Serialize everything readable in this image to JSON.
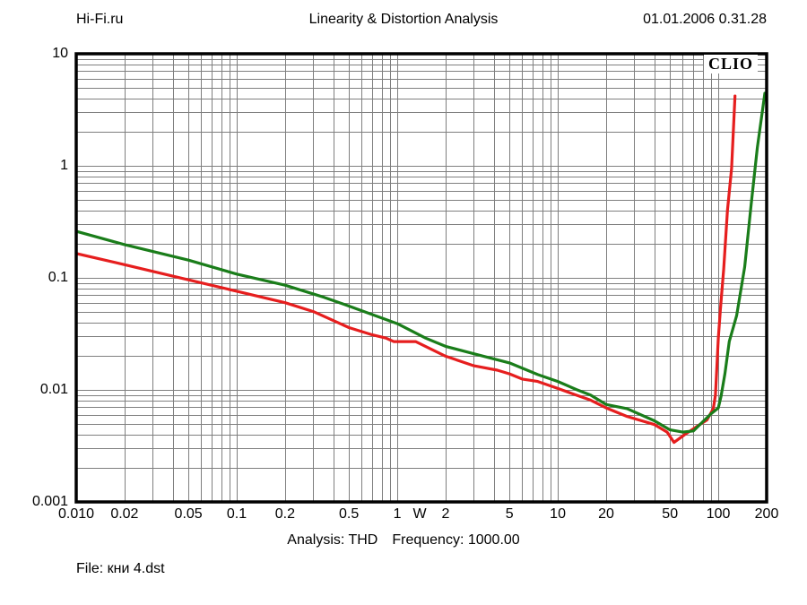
{
  "header": {
    "site": "Hi-Fi.ru",
    "datetime": "01.01.2006 0.31.28"
  },
  "watermark": "CLIO",
  "footer": {
    "analysis": "Analysis: THD",
    "frequency": "Frequency: 1000.00",
    "file": "File: кни 4.dst"
  },
  "colors": {
    "background": "#ffffff",
    "frame": "#000000",
    "grid": "#7f7f7f",
    "red_curve": "#e61e1e",
    "green_curve": "#1a7d1a",
    "text": "#000000"
  },
  "chart_data": {
    "type": "line",
    "title": "Linearity & Distortion Analysis",
    "x_scale": "log",
    "y_scale": "log",
    "xlim": [
      0.01,
      200
    ],
    "ylim": [
      0.001,
      10
    ],
    "x_unit_label": {
      "value": 1.38,
      "label": "W"
    },
    "grid": "log major+minor, both axes",
    "legend": "none",
    "x_ticks": [
      {
        "value": 0.01,
        "label": "0.010"
      },
      {
        "value": 0.02,
        "label": "0.02"
      },
      {
        "value": 0.05,
        "label": "0.05"
      },
      {
        "value": 0.1,
        "label": "0.1"
      },
      {
        "value": 0.2,
        "label": "0.2"
      },
      {
        "value": 0.5,
        "label": "0.5"
      },
      {
        "value": 1,
        "label": "1"
      },
      {
        "value": 2,
        "label": "2"
      },
      {
        "value": 5,
        "label": "5"
      },
      {
        "value": 10,
        "label": "10"
      },
      {
        "value": 20,
        "label": "20"
      },
      {
        "value": 50,
        "label": "50"
      },
      {
        "value": 100,
        "label": "100"
      },
      {
        "value": 200,
        "label": "200"
      }
    ],
    "y_ticks": [
      {
        "value": 10,
        "label": "10"
      },
      {
        "value": 1,
        "label": "1"
      },
      {
        "value": 0.1,
        "label": "0.1"
      },
      {
        "value": 0.01,
        "label": "0.01"
      },
      {
        "value": 0.001,
        "label": "0.001"
      }
    ],
    "series": [
      {
        "name": "thd-curve-red",
        "color": "#e61e1e",
        "points": [
          [
            0.01,
            0.165
          ],
          [
            0.02,
            0.131
          ],
          [
            0.05,
            0.096
          ],
          [
            0.1,
            0.076
          ],
          [
            0.2,
            0.06
          ],
          [
            0.3,
            0.05
          ],
          [
            0.5,
            0.036
          ],
          [
            0.7,
            0.031
          ],
          [
            0.85,
            0.029
          ],
          [
            0.95,
            0.027
          ],
          [
            1.3,
            0.027
          ],
          [
            2,
            0.02
          ],
          [
            3,
            0.0164
          ],
          [
            4.2,
            0.015
          ],
          [
            5,
            0.0139
          ],
          [
            6,
            0.0125
          ],
          [
            7.5,
            0.0119
          ],
          [
            10,
            0.0103
          ],
          [
            13,
            0.009
          ],
          [
            16,
            0.0081
          ],
          [
            20,
            0.0069
          ],
          [
            27,
            0.0058
          ],
          [
            40,
            0.0049
          ],
          [
            48,
            0.0042
          ],
          [
            53,
            0.0034
          ],
          [
            62,
            0.004
          ],
          [
            75,
            0.0048
          ],
          [
            85,
            0.0054
          ],
          [
            93,
            0.0068
          ],
          [
            96,
            0.009
          ],
          [
            100,
            0.029
          ],
          [
            103,
            0.052
          ],
          [
            108,
            0.12
          ],
          [
            114,
            0.4
          ],
          [
            121,
            0.95
          ],
          [
            127,
            4.2
          ]
        ]
      },
      {
        "name": "thd-curve-green",
        "color": "#1a7d1a",
        "points": [
          [
            0.01,
            0.26
          ],
          [
            0.02,
            0.198
          ],
          [
            0.05,
            0.144
          ],
          [
            0.1,
            0.108
          ],
          [
            0.2,
            0.086
          ],
          [
            0.35,
            0.067
          ],
          [
            0.5,
            0.056
          ],
          [
            0.7,
            0.047
          ],
          [
            1,
            0.039
          ],
          [
            1.5,
            0.029
          ],
          [
            2,
            0.0245
          ],
          [
            3,
            0.021
          ],
          [
            5,
            0.0174
          ],
          [
            7.5,
            0.0137
          ],
          [
            10,
            0.0119
          ],
          [
            13,
            0.0101
          ],
          [
            16,
            0.009
          ],
          [
            20,
            0.0074
          ],
          [
            27,
            0.0068
          ],
          [
            40,
            0.0053
          ],
          [
            50,
            0.0044
          ],
          [
            60,
            0.0042
          ],
          [
            70,
            0.0043
          ],
          [
            80,
            0.0052
          ],
          [
            90,
            0.0061
          ],
          [
            100,
            0.0069
          ],
          [
            104,
            0.0088
          ],
          [
            110,
            0.014
          ],
          [
            117,
            0.027
          ],
          [
            130,
            0.046
          ],
          [
            146,
            0.125
          ],
          [
            160,
            0.45
          ],
          [
            175,
            1.45
          ],
          [
            195,
            4.45
          ]
        ]
      }
    ]
  }
}
